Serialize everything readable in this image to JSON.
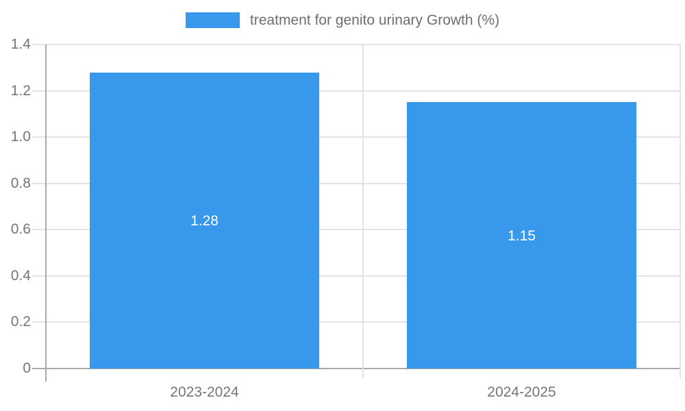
{
  "chart_data": {
    "type": "bar",
    "title": "treatment for genito urinary Growth (%)",
    "legend": {
      "label": "treatment for genito urinary Growth (%)",
      "position": "top-center"
    },
    "categories": [
      "2023-2024",
      "2024-2025"
    ],
    "series": [
      {
        "name": "treatment for genito urinary Growth (%)",
        "values": [
          1.28,
          1.15
        ]
      }
    ],
    "values": [
      1.28,
      1.15
    ],
    "value_labels": [
      "1.28",
      "1.15"
    ],
    "xlabel": "",
    "ylabel": "",
    "ylim": [
      0,
      1.4
    ],
    "yticks": [
      0,
      0.2,
      0.4,
      0.6,
      0.8,
      1.0,
      1.2,
      1.4
    ],
    "ytick_labels": [
      "0",
      "0.2",
      "0.4",
      "0.6",
      "0.8",
      "1.0",
      "1.2",
      "1.4"
    ],
    "grid": true,
    "colors": {
      "bar": "#3899ec",
      "gridline": "#e2e2e2",
      "axis": "#a8a8a8",
      "tick_text": "#757575",
      "legend_text": "#6e6e6e",
      "value_label_text": "#ffffff",
      "background": "#ffffff"
    }
  }
}
